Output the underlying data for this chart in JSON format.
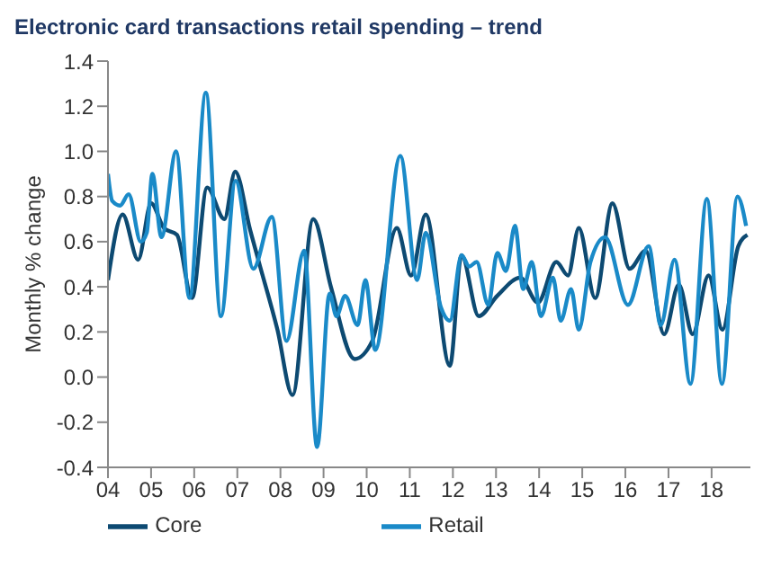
{
  "chart_data": {
    "type": "line",
    "title": "Electronic card transactions retail spending – trend",
    "ylabel": "Monthly % change",
    "xlim": [
      2004,
      2018.9
    ],
    "xticks": [
      {
        "value": 2004,
        "label": "04"
      },
      {
        "value": 2005,
        "label": "05"
      },
      {
        "value": 2006,
        "label": "06"
      },
      {
        "value": 2007,
        "label": "07"
      },
      {
        "value": 2008,
        "label": "08"
      },
      {
        "value": 2009,
        "label": "09"
      },
      {
        "value": 2010,
        "label": "10"
      },
      {
        "value": 2011,
        "label": "11"
      },
      {
        "value": 2012,
        "label": "12"
      },
      {
        "value": 2013,
        "label": "13"
      },
      {
        "value": 2014,
        "label": "14"
      },
      {
        "value": 2015,
        "label": "15"
      },
      {
        "value": 2016,
        "label": "16"
      },
      {
        "value": 2017,
        "label": "17"
      },
      {
        "value": 2018,
        "label": "18"
      }
    ],
    "ylim": [
      -0.4,
      1.4
    ],
    "yticks": [
      -0.4,
      -0.2,
      {
        "value": 0,
        "label": "0.0"
      },
      0.2,
      0.4,
      0.6,
      0.8,
      {
        "value": 1,
        "label": "1.0"
      },
      1.2,
      1.4
    ],
    "grid": false,
    "legend": "bottom",
    "marker": "none",
    "line_style": "solid",
    "series": [
      {
        "name": "Core",
        "color": "#0d4a72",
        "x": [
          2004.0,
          2004.34,
          2004.7,
          2005.0,
          2005.3,
          2005.6,
          2005.95,
          2006.3,
          2006.7,
          2006.95,
          2007.3,
          2007.5,
          2007.93,
          2008.28,
          2008.76,
          2009.17,
          2009.72,
          2010.13,
          2010.7,
          2011.03,
          2011.37,
          2011.93,
          2012.2,
          2012.6,
          2013.03,
          2013.56,
          2013.97,
          2014.4,
          2014.67,
          2014.92,
          2015.3,
          2015.7,
          2016.1,
          2016.47,
          2016.9,
          2017.24,
          2017.56,
          2017.93,
          2018.25,
          2018.62,
          2018.83
        ],
        "values": [
          0.43,
          0.72,
          0.52,
          0.77,
          0.66,
          0.63,
          0.35,
          0.84,
          0.7,
          0.91,
          0.65,
          0.51,
          0.21,
          -0.08,
          0.7,
          0.4,
          0.08,
          0.16,
          0.66,
          0.45,
          0.72,
          0.05,
          0.54,
          0.27,
          0.36,
          0.44,
          0.33,
          0.51,
          0.45,
          0.66,
          0.35,
          0.77,
          0.48,
          0.56,
          0.19,
          0.41,
          0.19,
          0.45,
          0.21,
          0.58,
          0.63
        ]
      },
      {
        "name": "Retail",
        "color": "#1a8ac8",
        "x": [
          2004.0,
          2004.1,
          2004.28,
          2004.48,
          2004.76,
          2004.9,
          2005.03,
          2005.24,
          2005.58,
          2005.89,
          2006.27,
          2006.62,
          2006.96,
          2007.37,
          2007.8,
          2008.14,
          2008.55,
          2008.85,
          2009.14,
          2009.3,
          2009.5,
          2009.79,
          2009.97,
          2010.2,
          2010.78,
          2011.17,
          2011.37,
          2011.72,
          2011.93,
          2012.2,
          2012.38,
          2012.55,
          2012.82,
          2013.03,
          2013.23,
          2013.44,
          2013.63,
          2013.83,
          2014.04,
          2014.32,
          2014.5,
          2014.74,
          2014.92,
          2015.19,
          2015.53,
          2016.06,
          2016.54,
          2016.82,
          2017.14,
          2017.51,
          2017.89,
          2018.24,
          2018.6,
          2018.8
        ],
        "values": [
          0.9,
          0.78,
          0.76,
          0.81,
          0.6,
          0.64,
          0.9,
          0.62,
          1.0,
          0.35,
          1.26,
          0.27,
          0.87,
          0.48,
          0.71,
          0.16,
          0.56,
          -0.31,
          0.37,
          0.27,
          0.36,
          0.23,
          0.43,
          0.12,
          0.98,
          0.43,
          0.64,
          0.31,
          0.25,
          0.54,
          0.49,
          0.51,
          0.32,
          0.55,
          0.47,
          0.67,
          0.39,
          0.51,
          0.27,
          0.44,
          0.25,
          0.39,
          0.21,
          0.51,
          0.62,
          0.32,
          0.58,
          0.23,
          0.52,
          -0.03,
          0.79,
          -0.03,
          0.8,
          0.67
        ]
      }
    ]
  }
}
